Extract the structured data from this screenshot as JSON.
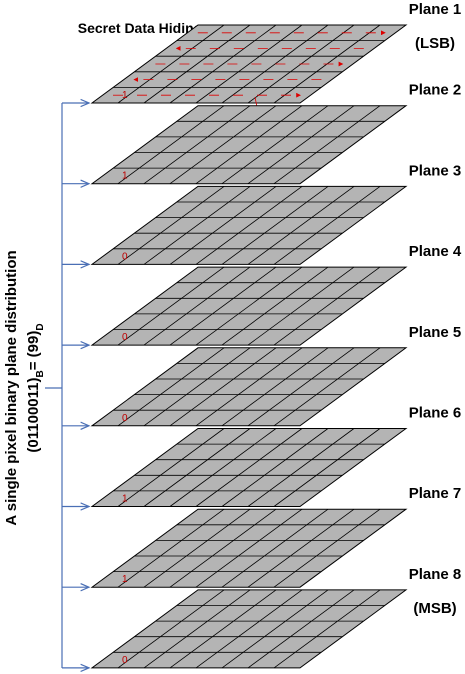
{
  "annotation": "Secret Data Hiding",
  "side_label": {
    "line1": "A single pixel binary plane distribution",
    "binary": "(01100011)",
    "binary_base": "B",
    "equals": "= (99)",
    "decimal_base": "D"
  },
  "planes": [
    {
      "label": "Plane 1",
      "sublabel": "(LSB)",
      "bit": "1"
    },
    {
      "label": "Plane 2",
      "bit": "1"
    },
    {
      "label": "Plane 3",
      "bit": "0"
    },
    {
      "label": "Plane 4",
      "bit": "0"
    },
    {
      "label": "Plane 5",
      "bit": "0"
    },
    {
      "label": "Plane 6",
      "bit": "1"
    },
    {
      "label": "Plane 7",
      "bit": "1"
    },
    {
      "label": "Plane 8",
      "sublabel": "(MSB)",
      "bit": "0"
    }
  ]
}
